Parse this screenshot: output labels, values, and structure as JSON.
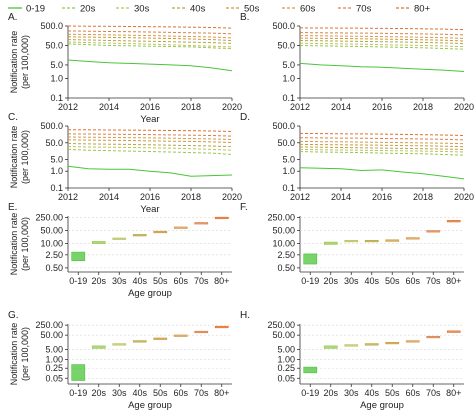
{
  "legend": [
    {
      "label": "0-19",
      "color": "#4bc43a",
      "dash": "solid"
    },
    {
      "label": "20s",
      "color": "#95c84a",
      "dash": "dash"
    },
    {
      "label": "30s",
      "color": "#b9c35d",
      "dash": "dash"
    },
    {
      "label": "40s",
      "color": "#b5a640",
      "dash": "dash"
    },
    {
      "label": "50s",
      "color": "#c89a3c",
      "dash": "dash"
    },
    {
      "label": "60s",
      "color": "#d49a46",
      "dash": "dash"
    },
    {
      "label": "70s",
      "color": "#d98048",
      "dash": "dash"
    },
    {
      "label": "80+",
      "color": "#e0702f",
      "dash": "dash"
    }
  ],
  "chart_data": [
    {
      "type": "line",
      "panel_label": "A.",
      "xlabel": "Year",
      "ylabel_line1": "Notification rate",
      "ylabel_line2": "(per 100,000)",
      "x": [
        2012,
        2013,
        2014,
        2015,
        2016,
        2017,
        2018,
        2019,
        2020
      ],
      "x_ticks": [
        "2012",
        "2014",
        "2016",
        "2018",
        "2020"
      ],
      "y_ticks": [
        "0.1",
        "1.0",
        "5.0",
        "50.0",
        "500.0"
      ],
      "y_tick_values": [
        0.1,
        1,
        5,
        50,
        500
      ],
      "y_scale": "log",
      "ylim": [
        0.1,
        500
      ],
      "series": [
        {
          "name": "0-19",
          "values": [
            9,
            7.5,
            6.5,
            6,
            5.5,
            5,
            4.5,
            3.5,
            2.5
          ]
        },
        {
          "name": "20s",
          "values": [
            60,
            55,
            50,
            48,
            46,
            44,
            42,
            38,
            34
          ]
        },
        {
          "name": "30s",
          "values": [
            75,
            70,
            66,
            62,
            58,
            54,
            50,
            46,
            42
          ]
        },
        {
          "name": "40s",
          "values": [
            100,
            95,
            90,
            86,
            82,
            78,
            74,
            70,
            64
          ]
        },
        {
          "name": "50s",
          "values": [
            140,
            135,
            130,
            125,
            120,
            114,
            108,
            100,
            90
          ]
        },
        {
          "name": "60s",
          "values": [
            190,
            182,
            175,
            168,
            160,
            152,
            145,
            136,
            122
          ]
        },
        {
          "name": "70s",
          "values": [
            280,
            270,
            262,
            254,
            245,
            235,
            225,
            215,
            198
          ]
        },
        {
          "name": "80+",
          "values": [
            500,
            490,
            480,
            470,
            460,
            450,
            435,
            420,
            390
          ]
        }
      ]
    },
    {
      "type": "line",
      "panel_label": "B.",
      "xlabel": "",
      "ylabel_line1": "",
      "ylabel_line2": "",
      "x": [
        2012,
        2013,
        2014,
        2015,
        2016,
        2017,
        2018,
        2019,
        2020
      ],
      "x_ticks": [
        "2012",
        "2014",
        "2016",
        "2018",
        "2020"
      ],
      "y_ticks": [
        "0.1",
        "1.0",
        "5.0",
        "50.0",
        "500.0"
      ],
      "y_tick_values": [
        0.1,
        1,
        5,
        50,
        500
      ],
      "y_scale": "log",
      "ylim": [
        0.1,
        500
      ],
      "series": [
        {
          "name": "0-19",
          "values": [
            6,
            5,
            4.5,
            4,
            3.8,
            3.4,
            3,
            2.7,
            2.3
          ]
        },
        {
          "name": "20s",
          "values": [
            50,
            48,
            46,
            44,
            42,
            40,
            38,
            35,
            32
          ]
        },
        {
          "name": "30s",
          "values": [
            65,
            62,
            60,
            58,
            55,
            52,
            50,
            47,
            43
          ]
        },
        {
          "name": "40s",
          "values": [
            90,
            87,
            84,
            81,
            78,
            75,
            72,
            68,
            62
          ]
        },
        {
          "name": "50s",
          "values": [
            120,
            117,
            114,
            110,
            106,
            102,
            98,
            93,
            85
          ]
        },
        {
          "name": "60s",
          "values": [
            160,
            156,
            152,
            148,
            143,
            138,
            132,
            125,
            115
          ]
        },
        {
          "name": "70s",
          "values": [
            230,
            225,
            220,
            215,
            210,
            203,
            196,
            188,
            175
          ]
        },
        {
          "name": "80+",
          "values": [
            400,
            395,
            390,
            385,
            378,
            370,
            360,
            348,
            325
          ]
        }
      ]
    },
    {
      "type": "line",
      "panel_label": "C.",
      "xlabel": "Year",
      "ylabel_line1": "Notification rate",
      "ylabel_line2": "(per 100,000)",
      "x": [
        2012,
        2013,
        2014,
        2015,
        2016,
        2017,
        2018,
        2019,
        2020
      ],
      "x_ticks": [
        "2012",
        "2014",
        "2016",
        "2018",
        "2020"
      ],
      "y_ticks": [
        "0.1",
        "1.0",
        "5.0",
        "50.0",
        "500.0"
      ],
      "y_tick_values": [
        0.1,
        1,
        5,
        50,
        500
      ],
      "y_scale": "log",
      "ylim": [
        0.1,
        500
      ],
      "series": [
        {
          "name": "0-19",
          "values": [
            2,
            1.4,
            1.3,
            1.3,
            1,
            0.8,
            0.5,
            0.55,
            0.6
          ]
        },
        {
          "name": "20s",
          "values": [
            20,
            18,
            17,
            16,
            15,
            14,
            13,
            12,
            10
          ]
        },
        {
          "name": "30s",
          "values": [
            30,
            28,
            27,
            26,
            25,
            24,
            22,
            20,
            18
          ]
        },
        {
          "name": "40s",
          "values": [
            45,
            43,
            41,
            40,
            38,
            36,
            34,
            32,
            29
          ]
        },
        {
          "name": "50s",
          "values": [
            75,
            72,
            70,
            68,
            65,
            62,
            60,
            56,
            52
          ]
        },
        {
          "name": "60s",
          "values": [
            110,
            107,
            104,
            100,
            97,
            93,
            89,
            85,
            78
          ]
        },
        {
          "name": "70s",
          "values": [
            170,
            166,
            162,
            158,
            154,
            148,
            142,
            136,
            125
          ]
        },
        {
          "name": "80+",
          "values": [
            300,
            295,
            290,
            285,
            278,
            270,
            262,
            252,
            235
          ]
        }
      ]
    },
    {
      "type": "line",
      "panel_label": "D.",
      "xlabel": "",
      "ylabel_line1": "",
      "ylabel_line2": "",
      "x": [
        2012,
        2013,
        2014,
        2015,
        2016,
        2017,
        2018,
        2019,
        2020
      ],
      "x_ticks": [
        "2012",
        "2014",
        "2016",
        "2018",
        "2020"
      ],
      "y_ticks": [
        "0.1",
        "1.0",
        "5.0",
        "50.0",
        "500.0"
      ],
      "y_tick_values": [
        0.1,
        1,
        5,
        50,
        500
      ],
      "y_scale": "log",
      "ylim": [
        0.1,
        500
      ],
      "series": [
        {
          "name": "0-19",
          "values": [
            1.6,
            1.5,
            1.4,
            1.1,
            1.2,
            0.9,
            0.7,
            0.5,
            0.35
          ]
        },
        {
          "name": "20s",
          "values": [
            15,
            14,
            13.5,
            13,
            12,
            11.5,
            11,
            10,
            9
          ]
        },
        {
          "name": "30s",
          "values": [
            20,
            19,
            18.5,
            18,
            17,
            16.5,
            16,
            15,
            14
          ]
        },
        {
          "name": "40s",
          "values": [
            28,
            27,
            26,
            25,
            24,
            23,
            22,
            21,
            20
          ]
        },
        {
          "name": "50s",
          "values": [
            40,
            39,
            38,
            37,
            36,
            34,
            33,
            31,
            29
          ]
        },
        {
          "name": "60s",
          "values": [
            60,
            58,
            57,
            55,
            53,
            51,
            49,
            47,
            44
          ]
        },
        {
          "name": "70s",
          "values": [
            100,
            98,
            95,
            93,
            90,
            87,
            84,
            80,
            74
          ]
        },
        {
          "name": "80+",
          "values": [
            180,
            176,
            172,
            168,
            164,
            158,
            152,
            145,
            135
          ]
        }
      ]
    },
    {
      "type": "range",
      "panel_label": "E.",
      "xlabel": "Age group",
      "ylabel_line1": "Notification rate",
      "ylabel_line2": "(per 100,000)",
      "categories": [
        "0-19",
        "20s",
        "30s",
        "40s",
        "50s",
        "60s",
        "70s",
        "80+"
      ],
      "y_ticks": [
        "0.50",
        "2.50",
        "10.00",
        "50.00",
        "250.00"
      ],
      "y_tick_values": [
        0.5,
        2.5,
        10,
        50,
        250
      ],
      "y_scale": "log",
      "ylim": [
        0.3,
        300
      ],
      "low": [
        1.2,
        10,
        17,
        27,
        40,
        70,
        120,
        230
      ],
      "high": [
        3.5,
        13,
        20,
        31,
        46,
        78,
        135,
        260
      ]
    },
    {
      "type": "range",
      "panel_label": "F.",
      "xlabel": "",
      "ylabel_line1": "",
      "ylabel_line2": "",
      "categories": [
        "0-19",
        "20s",
        "30s",
        "40s",
        "50s",
        "60s",
        "70s",
        "80+"
      ],
      "y_ticks": [
        "0.50",
        "2.50",
        "10.00",
        "50.00",
        "250.00"
      ],
      "y_tick_values": [
        0.5,
        2.5,
        10,
        50,
        250
      ],
      "y_scale": "log",
      "ylim": [
        0.3,
        300
      ],
      "low": [
        0.8,
        9,
        13,
        13,
        14,
        18,
        42,
        150
      ],
      "high": [
        2.8,
        12,
        15,
        15,
        16,
        21,
        50,
        175
      ]
    },
    {
      "type": "range",
      "panel_label": "G.",
      "xlabel": "Age group",
      "ylabel_line1": "Notification rate",
      "ylabel_line2": "(per 100,000)",
      "categories": [
        "0-19",
        "20s",
        "30s",
        "40s",
        "50s",
        "60s",
        "70s",
        "80+"
      ],
      "y_ticks": [
        "0.05",
        "0.25",
        "1.00",
        "5.00",
        "50.00",
        "250.00"
      ],
      "y_tick_values": [
        0.05,
        0.25,
        1,
        5,
        50,
        250
      ],
      "y_scale": "log",
      "ylim": [
        0.02,
        300
      ],
      "low": [
        0.035,
        6,
        11,
        18,
        28,
        45,
        80,
        170
      ],
      "high": [
        0.45,
        9,
        13,
        21,
        32,
        52,
        95,
        210
      ]
    },
    {
      "type": "range",
      "panel_label": "H.",
      "xlabel": "Age group",
      "ylabel_line1": "",
      "ylabel_line2": "",
      "categories": [
        "0-19",
        "20s",
        "30s",
        "40s",
        "50s",
        "60s",
        "70s",
        "80+"
      ],
      "y_ticks": [
        "0.05",
        "0.25",
        "1.00",
        "5.00",
        "50.00",
        "250.00"
      ],
      "y_tick_values": [
        0.05,
        0.25,
        1,
        5,
        50,
        250
      ],
      "y_scale": "log",
      "ylim": [
        0.02,
        300
      ],
      "low": [
        0.12,
        6,
        9,
        11,
        14,
        18,
        35,
        85
      ],
      "high": [
        0.3,
        9,
        11,
        13,
        16,
        21,
        42,
        100
      ]
    }
  ]
}
